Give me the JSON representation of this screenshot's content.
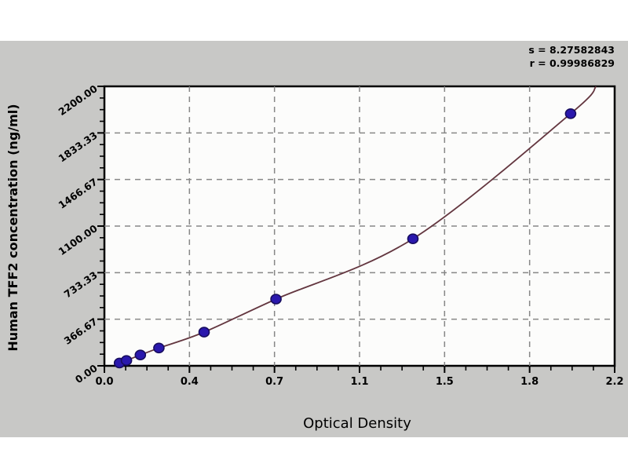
{
  "page": {
    "background": "#ffffff"
  },
  "stats": {
    "s_label": "s = 8.27582843",
    "r_label": "r = 0.99986829"
  },
  "chart_data": {
    "type": "scatter",
    "title": "",
    "xlabel": "Optical Density",
    "ylabel": "Human TFF2 concentration (ng/ml)",
    "xlim": [
      0,
      2.2
    ],
    "ylim": [
      0,
      2200
    ],
    "x_tick_labels": [
      "0.0",
      "0.4",
      "0.7",
      "1.1",
      "1.5",
      "1.8",
      "2.2"
    ],
    "y_tick_labels": [
      "0.00",
      "366.67",
      "733.33",
      "1100.00",
      "1466.67",
      "1833.33",
      "2200.00"
    ],
    "minor_ticks_per_interval": 3,
    "grid": "dashed",
    "legend_position": "none",
    "points": [
      {
        "od": 0.065,
        "conc": 22
      },
      {
        "od": 0.095,
        "conc": 42
      },
      {
        "od": 0.155,
        "conc": 85
      },
      {
        "od": 0.235,
        "conc": 140
      },
      {
        "od": 0.43,
        "conc": 265
      },
      {
        "od": 0.74,
        "conc": 525
      },
      {
        "od": 1.33,
        "conc": 1000
      },
      {
        "od": 2.01,
        "conc": 1985
      }
    ],
    "curve_points": [
      [
        0.05,
        15
      ],
      [
        0.065,
        22
      ],
      [
        0.095,
        42
      ],
      [
        0.155,
        85
      ],
      [
        0.235,
        140
      ],
      [
        0.43,
        265
      ],
      [
        0.74,
        525
      ],
      [
        1.33,
        1000
      ],
      [
        2.01,
        1985
      ],
      [
        2.12,
        2200
      ]
    ],
    "colors": {
      "panel_bg": "#c8c8c6",
      "plot_bg": "#fcfcfb",
      "frame": "#000000",
      "grid": "#878787",
      "curve": "#63363f",
      "point_fill": "#2a18ad",
      "point_stroke": "#170d5e"
    }
  }
}
